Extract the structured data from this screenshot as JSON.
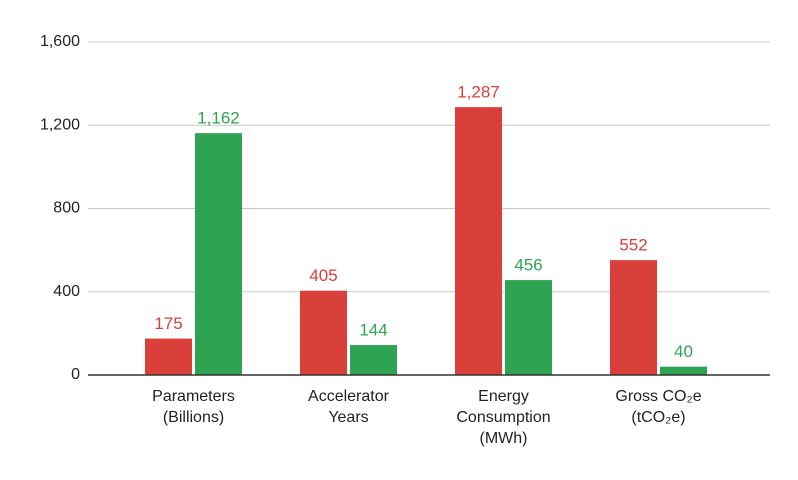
{
  "chart_data": {
    "type": "bar",
    "categories": [
      [
        "Parameters",
        "(Billions)"
      ],
      [
        "Accelerator",
        "Years"
      ],
      [
        "Energy",
        "Consumption",
        "(MWh)"
      ],
      [
        "Gross CO₂e",
        "(tCO₂e)"
      ]
    ],
    "series": [
      {
        "color": "#d9403a",
        "values": [
          175,
          405,
          1287,
          552
        ],
        "value_labels": [
          "175",
          "405",
          "1,287",
          "552"
        ]
      },
      {
        "color": "#2ea452",
        "values": [
          1162,
          144,
          456,
          40
        ],
        "value_labels": [
          "1,162",
          "144",
          "456",
          "40"
        ]
      }
    ],
    "ylim": [
      0,
      1600
    ],
    "yticks": [
      0,
      400,
      800,
      {
        "value": 1200,
        "label": "1,200"
      },
      {
        "value": 1600,
        "label": "1,600"
      }
    ],
    "grid": true
  }
}
